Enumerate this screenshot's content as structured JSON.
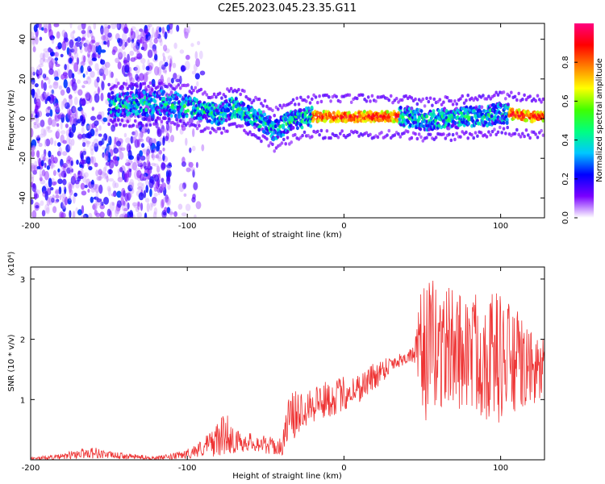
{
  "chart_data": [
    {
      "type": "heatmap",
      "title": "C2E5.2023.045.23.35.G11",
      "xlabel": "Height of straight line (km)",
      "ylabel": "Frequency (Hz)",
      "xlim": [
        -200,
        128
      ],
      "ylim": [
        -50,
        48
      ],
      "xticks": [
        -200,
        -100,
        0,
        100
      ],
      "yticks": [
        -40,
        -20,
        0,
        20,
        40
      ],
      "colorbar": {
        "label": "Normalized spectral amplitude",
        "range": [
          0.0,
          1.0
        ],
        "ticks": [
          "0.0",
          "0.2",
          "0.4",
          "0.6",
          "0.8"
        ],
        "colors": [
          "#ffffff",
          "#7a00ff",
          "#0000ff",
          "#00c8ff",
          "#00ff80",
          "#40ff00",
          "#ffff00",
          "#ff8000",
          "#ff0000",
          "#ff007f"
        ]
      },
      "dominant_frequency_ridge": {
        "x": [
          -145,
          -130,
          -115,
          -100,
          -90,
          -80,
          -70,
          -60,
          -50,
          -45,
          -40,
          -35,
          -30,
          -20,
          -10,
          0,
          10,
          20,
          30,
          40,
          50,
          60,
          70,
          80,
          90,
          100,
          110,
          120,
          128
        ],
        "y": [
          7,
          7,
          8,
          6,
          4,
          2,
          6,
          1,
          -2,
          -6,
          -4,
          -2,
          0,
          1,
          1,
          1,
          1,
          1,
          1,
          1,
          -1,
          0,
          0,
          1,
          1,
          3,
          2,
          1,
          1
        ]
      },
      "noisy_region_x_max": -110
    },
    {
      "type": "line",
      "xlabel": "Height of straight line (km)",
      "ylabel": "SNR (10 * v/v)",
      "yscale_label": "(x10⁴)",
      "xlim": [
        -200,
        128
      ],
      "ylim": [
        0,
        3.2
      ],
      "xticks": [
        -200,
        -100,
        0,
        100
      ],
      "yticks": [
        1,
        2,
        3
      ],
      "line_color": "#ee3333",
      "series": [
        {
          "x": [
            -200,
            -180,
            -170,
            -160,
            -150,
            -140,
            -120,
            -110,
            -100,
            -90,
            -80,
            -75,
            -70,
            -60,
            -50,
            -40,
            -35,
            -30,
            -25,
            -20,
            -10,
            0,
            10,
            20,
            30,
            40,
            45,
            50,
            60,
            70,
            80,
            90,
            100,
            110,
            120,
            128
          ],
          "values": [
            0.02,
            0.05,
            0.1,
            0.12,
            0.08,
            0.06,
            0.03,
            0.05,
            0.1,
            0.2,
            0.35,
            0.45,
            0.3,
            0.3,
            0.25,
            0.2,
            0.7,
            0.75,
            0.9,
            0.95,
            1.0,
            1.1,
            1.2,
            1.4,
            1.6,
            1.7,
            1.75,
            1.8,
            1.9,
            1.85,
            1.8,
            1.75,
            1.7,
            1.6,
            1.5,
            1.5
          ],
          "spread": [
            0.02,
            0.05,
            0.08,
            0.1,
            0.06,
            0.05,
            0.03,
            0.05,
            0.08,
            0.15,
            0.3,
            0.35,
            0.2,
            0.15,
            0.15,
            0.15,
            0.4,
            0.4,
            0.35,
            0.35,
            0.3,
            0.3,
            0.25,
            0.25,
            0.15,
            0.1,
            0.15,
            1.2,
            1.1,
            1.0,
            1.0,
            1.1,
            1.1,
            0.9,
            0.6,
            0.5
          ]
        }
      ]
    }
  ]
}
